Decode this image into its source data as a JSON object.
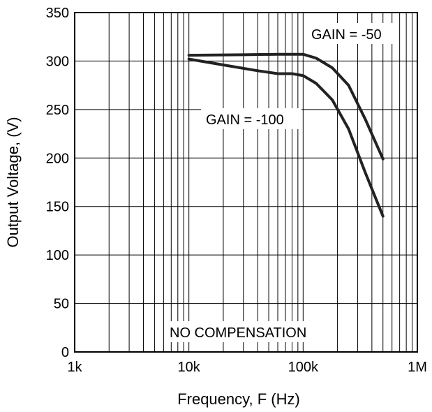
{
  "chart_data": {
    "type": "line",
    "xscale": "log",
    "xlim": [
      1000,
      1000000
    ],
    "ylim": [
      0,
      350
    ],
    "grid": true,
    "xlabel": "Frequency, F (Hz)",
    "ylabel": "Output Voltage, (V)",
    "x_ticks": [
      {
        "value": 1000,
        "label": "1k"
      },
      {
        "value": 10000,
        "label": "10k"
      },
      {
        "value": 100000,
        "label": "100k"
      },
      {
        "value": 1000000,
        "label": "1M"
      }
    ],
    "y_ticks": [
      {
        "value": 0,
        "label": "0"
      },
      {
        "value": 50,
        "label": "50"
      },
      {
        "value": 100,
        "label": "100"
      },
      {
        "value": 150,
        "label": "150"
      },
      {
        "value": 200,
        "label": "200"
      },
      {
        "value": 250,
        "label": "250"
      },
      {
        "value": 300,
        "label": "300"
      },
      {
        "value": 350,
        "label": "350"
      }
    ],
    "annotations": [
      {
        "text": "GAIN = -50"
      },
      {
        "text": "GAIN = -100"
      },
      {
        "text": "NO COMPENSATION"
      }
    ],
    "series": [
      {
        "name": "GAIN = -50",
        "x": [
          10000,
          30000,
          60000,
          100000,
          130000,
          180000,
          250000,
          350000,
          500000
        ],
        "y": [
          306,
          306.5,
          307,
          307,
          303,
          293,
          275,
          240,
          199
        ]
      },
      {
        "name": "GAIN = -100",
        "x": [
          10000,
          20000,
          40000,
          60000,
          80000,
          100000,
          130000,
          180000,
          250000,
          350000,
          500000
        ],
        "y": [
          302,
          296,
          290,
          287,
          287,
          285,
          277,
          260,
          230,
          185,
          140
        ]
      }
    ]
  }
}
